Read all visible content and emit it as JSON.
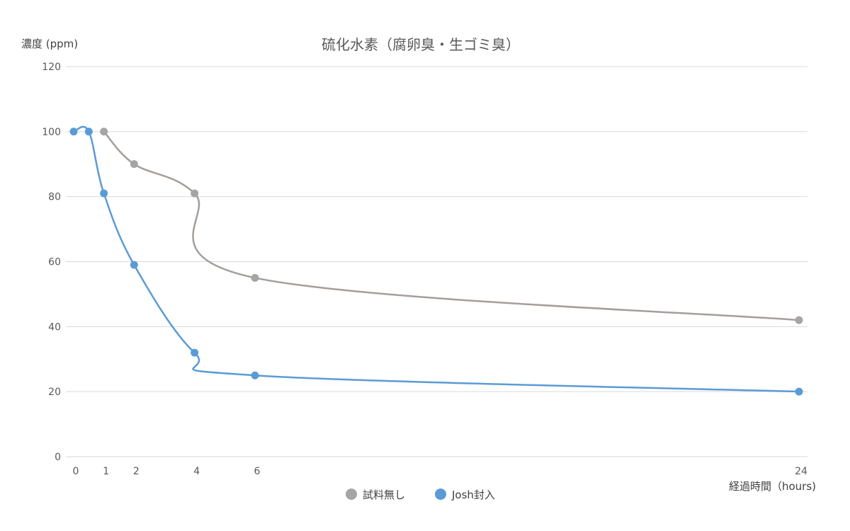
{
  "chart_data": {
    "type": "scatter",
    "title": "硫化水素（腐卵臭・生ゴミ臭）",
    "ylabel": "濃度 (ppm)",
    "xlabel": "経過時間（hours)",
    "ylim": [
      0,
      120
    ],
    "y_ticks": [
      "0",
      "20",
      "40",
      "60",
      "80",
      "100",
      "120"
    ],
    "x_ticks": [
      {
        "value": 0,
        "label": "0"
      },
      {
        "value": 1,
        "label": "1"
      },
      {
        "value": 2,
        "label": "2"
      },
      {
        "value": 4,
        "label": "4"
      },
      {
        "value": 6,
        "label": "6"
      },
      {
        "value": 24,
        "label": "24"
      }
    ],
    "grid": true,
    "smooth_lines": true,
    "legend_position": "bottom",
    "series": [
      {
        "name": "試料無し",
        "color": "#a5a5a5",
        "line_color": "#a59e9a",
        "points": [
          [
            1,
            100
          ],
          [
            2,
            90
          ],
          [
            4,
            81
          ],
          [
            6,
            55
          ],
          [
            24,
            42
          ]
        ]
      },
      {
        "name": "Josh封入",
        "color": "#5b9bd5",
        "line_color": "#5b9bd5",
        "points": [
          [
            0,
            100
          ],
          [
            0.5,
            100
          ],
          [
            1,
            81
          ],
          [
            2,
            59
          ],
          [
            4,
            32
          ],
          [
            6,
            25
          ],
          [
            24,
            20
          ]
        ]
      }
    ]
  }
}
